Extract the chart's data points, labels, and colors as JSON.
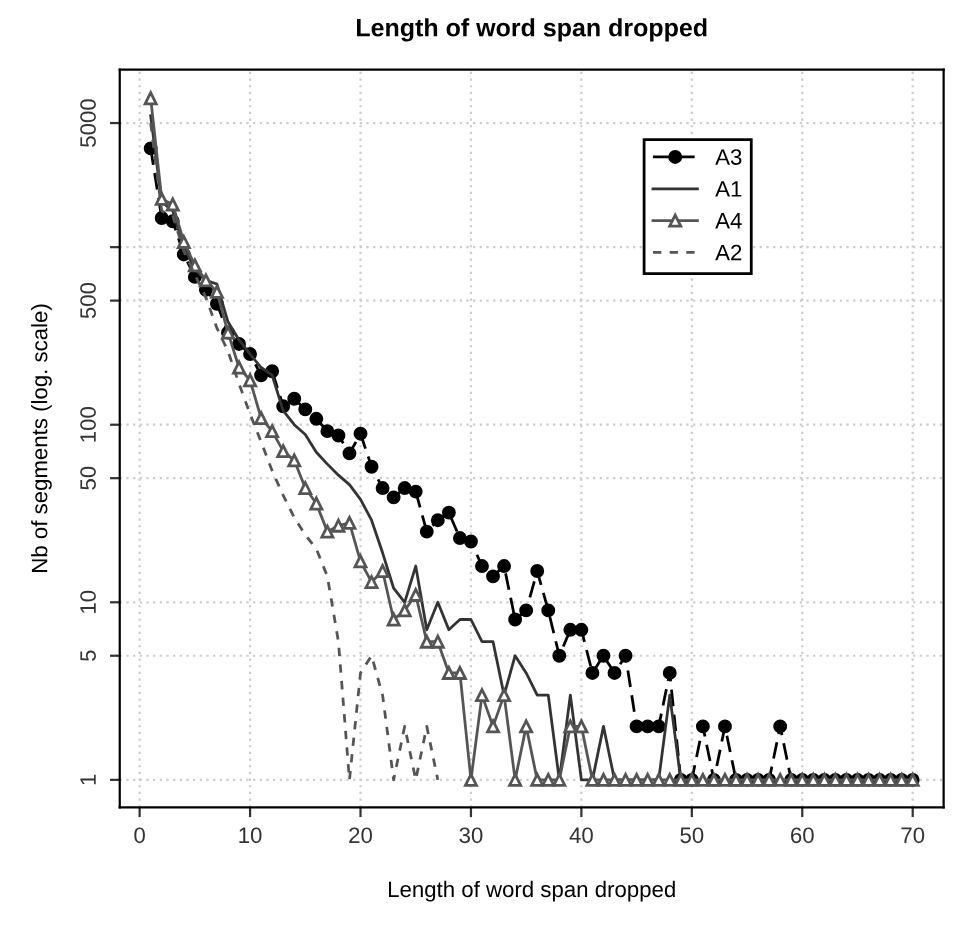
{
  "chart_data": {
    "type": "line",
    "title": "Length of word span dropped",
    "xlabel": "Length of word span dropped",
    "ylabel": "Nb of segments (log. scale)",
    "log": "y",
    "xlim": [
      -1.8,
      72.8
    ],
    "ylim": [
      0.7,
      10000
    ],
    "xticks": [
      0,
      10,
      20,
      30,
      40,
      50,
      60,
      70
    ],
    "yticks": [
      1,
      5,
      10,
      50,
      100,
      500,
      {
        "value": 1000,
        "label": null
      },
      5000
    ],
    "grid": true,
    "legend": "top right",
    "series": [
      {
        "name": "A3",
        "color": "#000000",
        "marker": "circle",
        "line_style": "dashed",
        "x": [
          1,
          2,
          3,
          4,
          5,
          6,
          7,
          8,
          9,
          10,
          11,
          12,
          13,
          14,
          15,
          16,
          17,
          18,
          19,
          20,
          21,
          22,
          23,
          24,
          25,
          26,
          27,
          28,
          29,
          30,
          31,
          32,
          33,
          34,
          35,
          36,
          37,
          38,
          39,
          40,
          41,
          42,
          43,
          44,
          45,
          46,
          47,
          48,
          49,
          50,
          51,
          52,
          53,
          54,
          55,
          56,
          57,
          58,
          59,
          60,
          61,
          62,
          63,
          64,
          65,
          66,
          67,
          68,
          69,
          70
        ],
        "values": [
          3600,
          1460,
          1400,
          910,
          680,
          575,
          480,
          330,
          285,
          250,
          190,
          200,
          127,
          140,
          122,
          108,
          92,
          87,
          69,
          89,
          58,
          44,
          39,
          44,
          42,
          25,
          29,
          32,
          23,
          22,
          16,
          14,
          16,
          8,
          9,
          15,
          9,
          5,
          7,
          7,
          4,
          5,
          4,
          5,
          2,
          2,
          2,
          4,
          1,
          1,
          2,
          1,
          2,
          1,
          1,
          1,
          1,
          2,
          1,
          1,
          1,
          1,
          1,
          1,
          1,
          1,
          1,
          1,
          1,
          1
        ]
      },
      {
        "name": "A1",
        "color": "#333333",
        "marker": "none",
        "line_style": "solid",
        "x": [
          1,
          2,
          3,
          4,
          5,
          6,
          7,
          8,
          9,
          10,
          11,
          12,
          13,
          14,
          15,
          16,
          17,
          18,
          19,
          20,
          21,
          22,
          23,
          24,
          25,
          26,
          27,
          28,
          29,
          30,
          31,
          32,
          33,
          34,
          35,
          36,
          37,
          38,
          39,
          40,
          41,
          42,
          43,
          44,
          45,
          46,
          47,
          48,
          49
        ],
        "values": [
          5500,
          1800,
          1600,
          1000,
          750,
          650,
          620,
          380,
          300,
          250,
          210,
          190,
          120,
          100,
          88,
          70,
          60,
          52,
          46,
          38,
          29,
          19,
          12,
          10,
          16,
          7,
          10,
          7,
          8,
          8,
          6,
          6,
          3,
          5,
          4,
          3,
          3,
          1,
          3,
          1,
          1,
          2,
          1,
          1,
          1,
          1,
          1,
          3,
          1
        ]
      },
      {
        "name": "A4",
        "color": "#555555",
        "marker": "triangle",
        "line_style": "solid",
        "x": [
          1,
          2,
          3,
          4,
          5,
          6,
          7,
          8,
          9,
          10,
          11,
          12,
          13,
          14,
          15,
          16,
          17,
          18,
          19,
          20,
          21,
          22,
          23,
          24,
          25,
          26,
          27,
          28,
          29,
          30,
          31,
          32,
          33,
          34,
          35,
          36,
          37,
          38,
          39,
          40,
          41,
          42,
          43,
          44,
          45,
          46,
          47,
          48,
          49,
          50,
          51,
          52,
          53,
          54,
          55,
          56,
          57,
          58,
          59,
          60,
          61,
          62,
          63,
          64,
          65,
          66,
          67,
          68,
          69,
          70
        ],
        "values": [
          6900,
          1870,
          1740,
          1070,
          790,
          650,
          560,
          330,
          210,
          178,
          109,
          92,
          71,
          63,
          44,
          36,
          25,
          27,
          28,
          17,
          13,
          15,
          8,
          9,
          11,
          6,
          6,
          4,
          4,
          1,
          3,
          2,
          3,
          1,
          2,
          1,
          1,
          1,
          2,
          2,
          1,
          1,
          1,
          1,
          1,
          1,
          1,
          1,
          1,
          1,
          1,
          1,
          1,
          1,
          1,
          1,
          1,
          1,
          1,
          1,
          1,
          1,
          1,
          1,
          1,
          1,
          1,
          1,
          1,
          1
        ]
      },
      {
        "name": "A2",
        "color": "#555555",
        "marker": "none",
        "line_style": "dotted",
        "x": [
          1,
          2,
          3,
          4,
          5,
          6,
          7,
          8,
          9,
          10,
          11,
          12,
          13,
          14,
          15,
          16,
          17,
          18,
          19,
          20,
          21,
          22,
          23,
          24,
          25,
          26,
          27
        ],
        "values": [
          5000,
          1600,
          1500,
          950,
          700,
          520,
          350,
          260,
          170,
          115,
          80,
          55,
          40,
          30,
          24,
          20,
          14,
          6,
          1,
          4,
          5,
          3,
          1,
          2,
          1,
          2,
          1
        ]
      }
    ]
  }
}
